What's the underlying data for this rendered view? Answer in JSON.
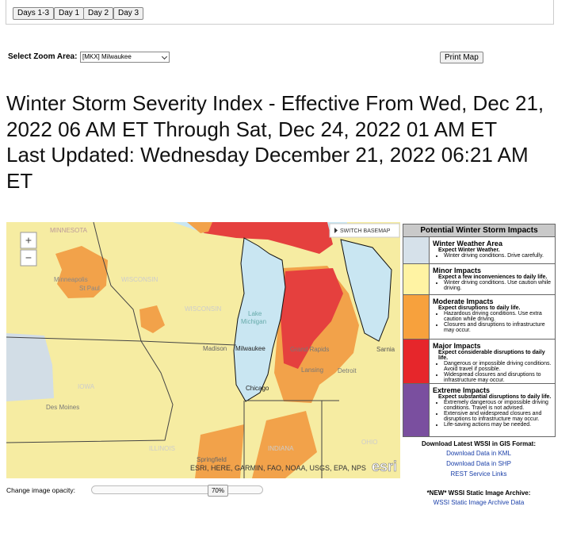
{
  "tabs": [
    "Days 1-3",
    "Day 1",
    "Day 2",
    "Day 3"
  ],
  "zoom": {
    "label": "Select Zoom Area:",
    "selected": "[MKX] Milwaukee"
  },
  "print_button": "Print Map",
  "heading": {
    "title": "Winter Storm Severity Index - Effective From Wed, Dec 21, 2022 06 AM ET Through Sat, Dec 24, 2022 01 AM ET",
    "updated": "Last Updated: Wednesday December 21, 2022 06:21 AM ET"
  },
  "map": {
    "zoom_in": "+",
    "zoom_out": "−",
    "basemap_button": "SWITCH BASEMAP",
    "labels": [
      "MINNESOTA",
      "Minneapolis",
      "St Paul",
      "WISCONSIN",
      "WISCONSIN",
      "Madison",
      "Milwaukee",
      "Lake",
      "Michigan",
      "Grand Rapids",
      "Lansing",
      "Detroit",
      "Sarnia",
      "Chicago",
      "IOWA",
      "Des Moines",
      "ILLINOIS",
      "INDIANA",
      "Springfield",
      "OHIO"
    ],
    "attribution": "ESRI, HERE, GARMIN, FAO, NOAA, USGS, EPA, NPS",
    "logo": "esri"
  },
  "legend": {
    "title": "Potential Winter Storm Impacts",
    "items": [
      {
        "name": "Winter Weather Area",
        "summary": "Expect Winter Weather.",
        "color": "#d6e1ea",
        "details": [
          "Winter driving conditions. Drive carefully."
        ]
      },
      {
        "name": "Minor Impacts",
        "summary": "Expect a few inconveniences to daily life.",
        "color": "#fff3a3",
        "details": [
          "Winter driving conditions. Use caution while driving."
        ]
      },
      {
        "name": "Moderate Impacts",
        "summary": "Expect disruptions to daily life.",
        "color": "#f7a13d",
        "details": [
          "Hazardous driving conditions. Use extra caution while driving.",
          "Closures and disruptions to infrastructure may occur."
        ]
      },
      {
        "name": "Major Impacts",
        "summary": "Expect considerable disruptions to daily life.",
        "color": "#e6262b",
        "details": [
          "Dangerous or impossible driving conditions. Avoid travel if possible.",
          "Widespread closures and disruptions to infrastructure may occur."
        ]
      },
      {
        "name": "Extreme Impacts",
        "summary": "Expect substantial disruptions to daily life.",
        "color": "#7a4f9f",
        "details": [
          "Extremely dangerous or impossible driving conditions. Travel is not advised.",
          "Extensive and widespread closures and disruptions to infrastructure may occur.",
          "Life-saving actions may be needed."
        ]
      }
    ]
  },
  "downloads": {
    "title": "Download Latest WSSI in GIS Format:",
    "links": [
      "Download Data in KML",
      "Download Data in SHP",
      "REST Service Links"
    ]
  },
  "archive": {
    "title": "*NEW* WSSI Static Image Archive:",
    "link": "WSSI Static Image Archive Data"
  },
  "opacity": {
    "label": "Change image opacity:",
    "value": "70%"
  }
}
